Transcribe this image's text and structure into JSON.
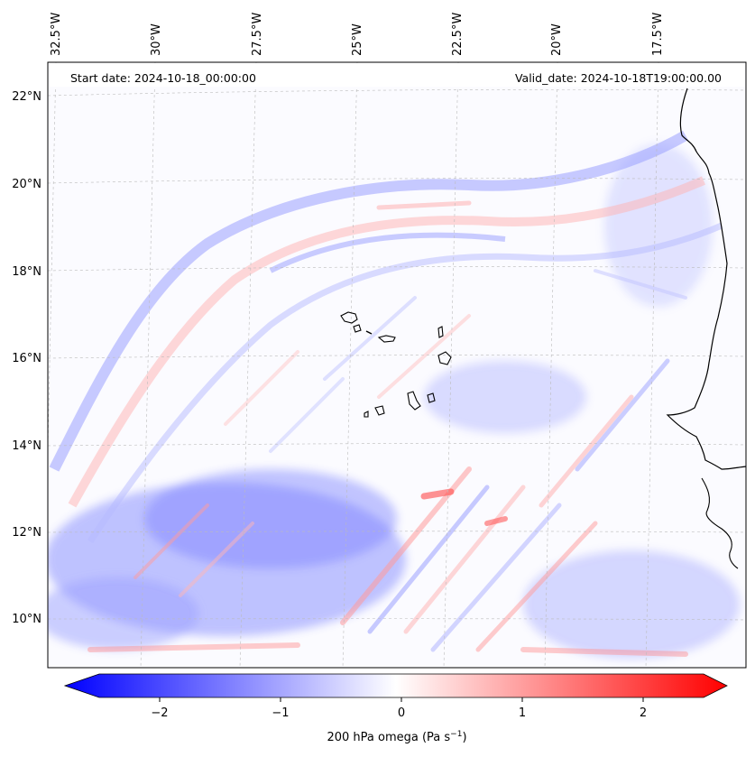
{
  "map": {
    "start_date": "Start date: 2024-10-18_00:00:00",
    "valid_date": "Valid_date: 2024-10-18T19:00:00.00",
    "lon_labels": [
      "32.5°W",
      "30°W",
      "27.5°W",
      "25°W",
      "22.5°W",
      "20°W",
      "17.5°W"
    ],
    "lat_labels": [
      "22°N",
      "20°N",
      "18°N",
      "16°N",
      "14°N",
      "12°N",
      "10°N"
    ],
    "field": "200 hPa omega",
    "colors": {
      "negative": "#0000ff",
      "zero": "#ffffff",
      "positive": "#ff0000",
      "coastline": "#000000",
      "grid": "#bbbbbb"
    }
  },
  "colorbar": {
    "ticks": [
      "−2",
      "−1",
      "0",
      "1",
      "2"
    ],
    "tick_values": [
      -2,
      -1,
      0,
      1,
      2
    ],
    "range": [
      -2.5,
      2.5
    ],
    "label_main": "200 hPa omega (Pa s",
    "label_exp": "−1",
    "label_close": ")"
  }
}
